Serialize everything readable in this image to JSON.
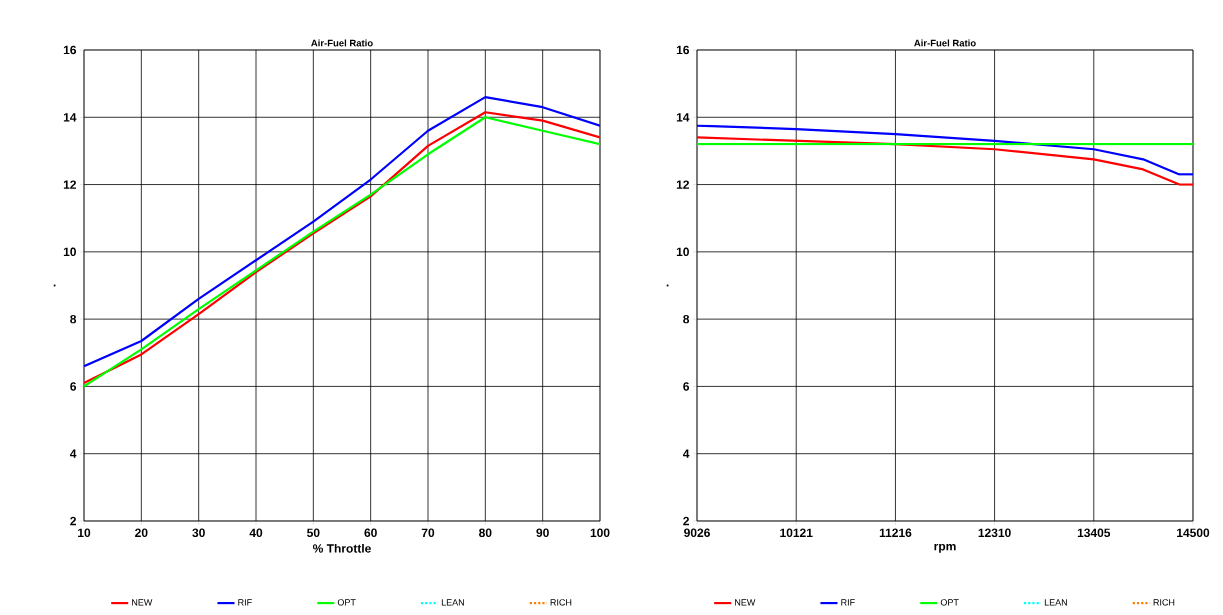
{
  "chart_data": [
    {
      "type": "line",
      "title": "Air-Fuel Ratio",
      "xlabel": "% Throttle",
      "ylabel": ".",
      "x": [
        10,
        20,
        30,
        40,
        50,
        60,
        70,
        80,
        90,
        100
      ],
      "xlim": [
        10,
        100
      ],
      "xticks": [
        10,
        20,
        30,
        40,
        50,
        60,
        70,
        80,
        90,
        100
      ],
      "ylim": [
        2,
        16
      ],
      "yticks": [
        2,
        4,
        6,
        8,
        10,
        12,
        14,
        16
      ],
      "grid": true,
      "legend": "bottom",
      "marker": "none",
      "series": [
        {
          "name": "NEW",
          "color": "#ff0000",
          "values": [
            6.1,
            6.95,
            8.15,
            9.4,
            10.55,
            11.65,
            13.15,
            14.15,
            13.9,
            13.4
          ]
        },
        {
          "name": "RIF",
          "color": "#0000ff",
          "values": [
            6.6,
            7.35,
            8.6,
            9.75,
            10.9,
            12.15,
            13.6,
            14.6,
            14.3,
            13.75
          ]
        },
        {
          "name": "OPT",
          "color": "#00ff00",
          "values": [
            6.0,
            7.1,
            8.3,
            9.45,
            10.6,
            11.7,
            12.9,
            14.0,
            13.6,
            13.2
          ]
        },
        {
          "name": "LEAN",
          "color": "#00ffff",
          "line_style": "dotted",
          "values": [
            null,
            null,
            null,
            null,
            null,
            null,
            null,
            null,
            null,
            null
          ]
        },
        {
          "name": "RICH",
          "color": "#ff8000",
          "line_style": "dotted",
          "values": [
            null,
            null,
            null,
            null,
            null,
            null,
            null,
            null,
            null,
            null
          ]
        }
      ]
    },
    {
      "type": "line",
      "title": "Air-Fuel Ratio",
      "xlabel": "rpm",
      "ylabel": ".",
      "x": [
        9026,
        10121,
        11216,
        12310,
        13405,
        13950,
        14350,
        14500
      ],
      "xlim": [
        9026,
        14500
      ],
      "xticks": [
        9026,
        10121,
        11216,
        12310,
        13405,
        14500
      ],
      "ylim": [
        2,
        16
      ],
      "yticks": [
        2,
        4,
        6,
        8,
        10,
        12,
        14,
        16
      ],
      "grid": true,
      "legend": "bottom",
      "marker": "none",
      "series": [
        {
          "name": "NEW",
          "color": "#ff0000",
          "values": [
            13.4,
            13.3,
            13.2,
            13.05,
            12.75,
            12.45,
            12.0,
            12.0
          ]
        },
        {
          "name": "RIF",
          "color": "#0000ff",
          "values": [
            13.75,
            13.65,
            13.5,
            13.3,
            13.05,
            12.75,
            12.3,
            12.3
          ]
        },
        {
          "name": "OPT",
          "color": "#00ff00",
          "values": [
            13.2,
            13.2,
            13.2,
            13.2,
            13.2,
            13.2,
            13.2,
            13.2
          ]
        },
        {
          "name": "LEAN",
          "color": "#00ffff",
          "line_style": "dotted",
          "values": [
            null,
            null,
            null,
            null,
            null,
            null,
            null,
            null
          ]
        },
        {
          "name": "RICH",
          "color": "#ff8000",
          "line_style": "dotted",
          "values": [
            null,
            null,
            null,
            null,
            null,
            null,
            null,
            null
          ]
        }
      ]
    }
  ]
}
